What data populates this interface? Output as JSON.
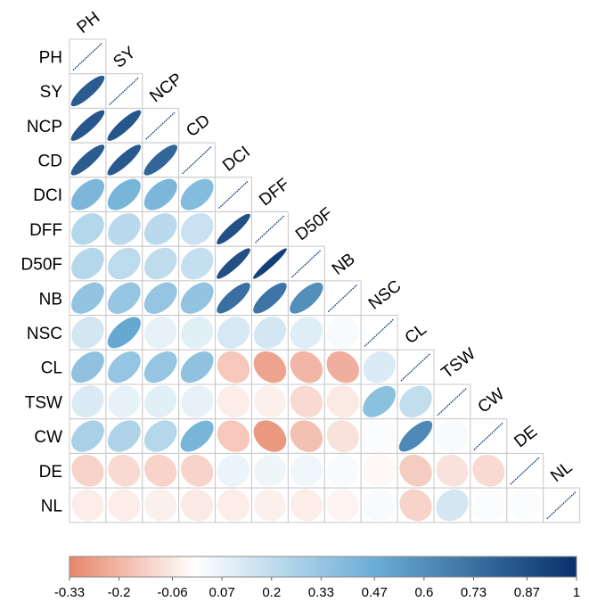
{
  "chart_data": {
    "type": "heatmap",
    "variant": "lower-triangle correlation ellipse plot",
    "variables": [
      "PH",
      "SY",
      "NCP",
      "CD",
      "DCI",
      "DFF",
      "D50F",
      "NB",
      "NSC",
      "CL",
      "TSW",
      "CW",
      "DE",
      "NL"
    ],
    "matrix": [
      [
        1.0,
        0.86,
        0.88,
        0.86,
        0.53,
        0.3,
        0.3,
        0.44,
        0.18,
        0.45,
        0.15,
        0.35,
        -0.12,
        -0.05
      ],
      [
        0.86,
        1.0,
        0.88,
        0.87,
        0.55,
        0.28,
        0.27,
        0.42,
        0.62,
        0.43,
        0.1,
        0.33,
        -0.1,
        -0.05
      ],
      [
        0.88,
        0.88,
        1.0,
        0.83,
        0.53,
        0.28,
        0.26,
        0.43,
        0.1,
        0.43,
        0.12,
        0.3,
        -0.12,
        -0.04
      ],
      [
        0.86,
        0.87,
        0.83,
        1.0,
        0.5,
        0.22,
        0.24,
        0.44,
        0.12,
        0.45,
        0.1,
        0.55,
        -0.12,
        -0.06
      ],
      [
        0.53,
        0.55,
        0.53,
        0.5,
        1.0,
        0.9,
        0.9,
        0.8,
        0.17,
        -0.15,
        -0.05,
        -0.15,
        0.08,
        -0.05
      ],
      [
        0.3,
        0.28,
        0.28,
        0.22,
        0.9,
        1.0,
        0.95,
        0.78,
        0.18,
        -0.25,
        -0.04,
        -0.28,
        0.07,
        -0.04
      ],
      [
        0.3,
        0.27,
        0.26,
        0.24,
        0.9,
        0.95,
        1.0,
        0.7,
        0.13,
        -0.2,
        -0.1,
        -0.17,
        0.06,
        -0.05
      ],
      [
        0.44,
        0.42,
        0.43,
        0.44,
        0.8,
        0.78,
        0.7,
        1.0,
        0.03,
        -0.22,
        -0.06,
        -0.08,
        0.03,
        -0.03
      ],
      [
        0.18,
        0.62,
        0.1,
        0.12,
        0.17,
        0.18,
        0.13,
        0.03,
        1.0,
        0.15,
        0.47,
        0.02,
        -0.02,
        0.03
      ],
      [
        0.45,
        0.43,
        0.43,
        0.45,
        -0.15,
        -0.25,
        -0.2,
        -0.22,
        0.15,
        1.0,
        0.25,
        0.72,
        -0.14,
        -0.12
      ],
      [
        0.15,
        0.1,
        0.12,
        0.1,
        -0.05,
        -0.04,
        -0.1,
        -0.06,
        0.47,
        0.25,
        1.0,
        0.03,
        -0.08,
        0.18
      ],
      [
        0.35,
        0.33,
        0.3,
        0.55,
        -0.15,
        -0.28,
        -0.17,
        -0.08,
        0.02,
        0.72,
        0.03,
        1.0,
        -0.1,
        0.02
      ],
      [
        -0.12,
        -0.1,
        -0.12,
        -0.12,
        0.08,
        0.07,
        0.06,
        0.03,
        -0.02,
        -0.14,
        -0.08,
        -0.1,
        1.0,
        0.02
      ],
      [
        -0.05,
        -0.05,
        -0.04,
        -0.06,
        -0.05,
        -0.04,
        -0.05,
        -0.03,
        0.03,
        -0.12,
        0.18,
        0.02,
        0.02,
        1.0
      ]
    ],
    "colorbar": {
      "min": -0.33,
      "max": 1,
      "ticks": [
        "-0.33",
        "-0.2",
        "-0.06",
        "0.07",
        "0.2",
        "0.33",
        "0.47",
        "0.6",
        "0.73",
        "0.87",
        "1"
      ],
      "colors": {
        "negative": "#e8866a",
        "neutral": "#ffffff",
        "positive": "#08306b",
        "mid_positive": "#6baed6"
      }
    },
    "grid": true,
    "legend": "bottom"
  }
}
